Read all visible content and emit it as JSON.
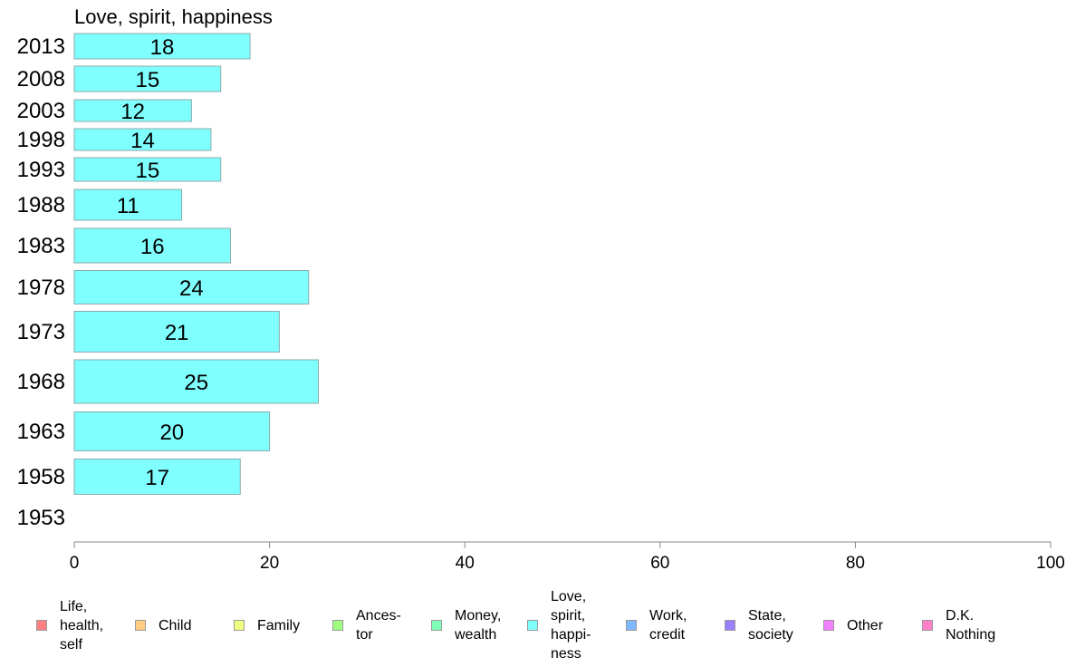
{
  "chart_data": {
    "type": "bar",
    "orientation": "horizontal",
    "title": "Love, spirit, happiness",
    "categories": [
      "2013",
      "2008",
      "2003",
      "1998",
      "1993",
      "1988",
      "1983",
      "1978",
      "1973",
      "1968",
      "1963",
      "1958",
      "1953"
    ],
    "series": [
      {
        "name": "Love, spirit, happiness",
        "color": "#80ffff",
        "values": [
          18,
          15,
          12,
          14,
          15,
          11,
          16,
          24,
          21,
          25,
          20,
          17,
          null
        ],
        "labels": [
          "18",
          "15",
          "12",
          "14",
          "15",
          "11",
          "16",
          "24",
          "21",
          "25",
          "20",
          "17",
          ""
        ]
      }
    ],
    "xlim": [
      0,
      100
    ],
    "xticks": [
      "0",
      "20",
      "40",
      "60",
      "80",
      "100"
    ],
    "xlabel": "",
    "ylabel": "",
    "grid": false,
    "legend_position": "bottom"
  },
  "legend": {
    "items": [
      {
        "label": "Life,\nhealth,\nself",
        "color": "#ff8080"
      },
      {
        "label": "Child",
        "color": "#ffcc80"
      },
      {
        "label": "Family",
        "color": "#f0ff80"
      },
      {
        "label": "Ances-\ntor",
        "color": "#a0ff80"
      },
      {
        "label": "Money,\nwealth",
        "color": "#80ffb8"
      },
      {
        "label": "Love,\nspirit,\nhappi-\nness",
        "color": "#80ffff"
      },
      {
        "label": "Work,\ncredit",
        "color": "#80b8ff"
      },
      {
        "label": "State,\nsociety",
        "color": "#9a80ff"
      },
      {
        "label": "Other",
        "color": "#f080ff"
      },
      {
        "label": "D.K.\nNothing",
        "color": "#ff80c8"
      }
    ]
  }
}
